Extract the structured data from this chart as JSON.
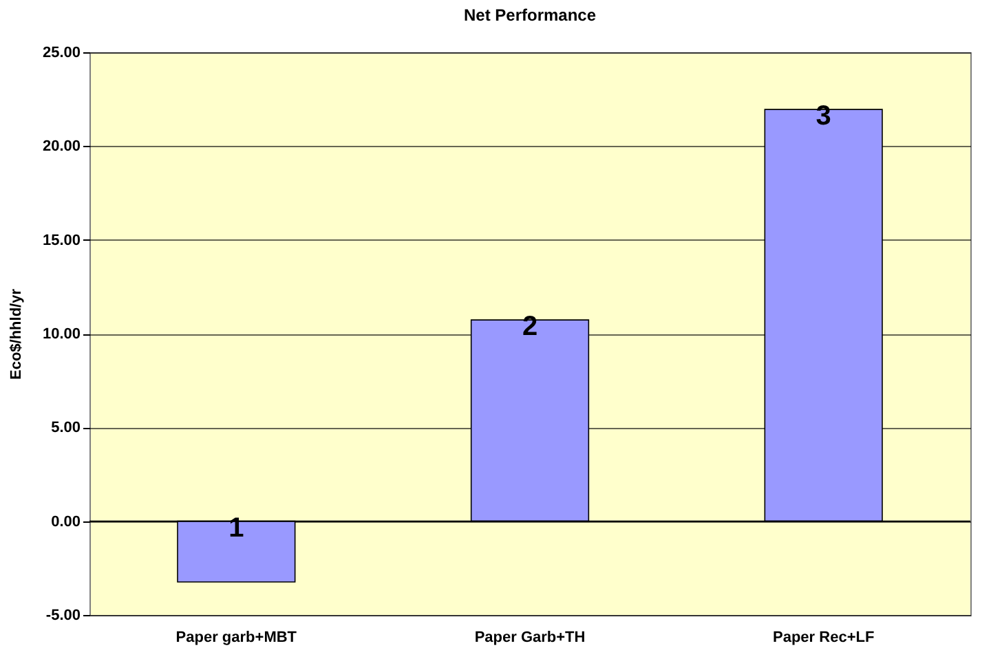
{
  "chart_data": {
    "type": "bar",
    "title": "Net Performance",
    "ylabel": "Eco$/hhld/yr",
    "categories": [
      "Paper garb+MBT",
      "Paper Garb+TH",
      "Paper Rec+LF"
    ],
    "values": [
      -3.24,
      10.73,
      21.95
    ],
    "color": "#9999ff",
    "ylim": [
      -5,
      25
    ],
    "yticks": [
      {
        "value": -5,
        "label": "-5.00"
      },
      {
        "value": 0,
        "label": "0.00"
      },
      {
        "value": 5,
        "label": "5.00"
      },
      {
        "value": 10,
        "label": "10.00"
      },
      {
        "value": 15,
        "label": "15.00"
      },
      {
        "value": 20,
        "label": "20.00"
      },
      {
        "value": 25,
        "label": "25.00"
      }
    ],
    "grid": "y",
    "annotations": [
      {
        "text": "1",
        "x": "Paper garb+MBT",
        "y": 0
      },
      {
        "text": "2",
        "x": "Paper Garb+TH",
        "y": 10.73
      },
      {
        "text": "3",
        "x": "Paper Rec+LF",
        "y": 21.95
      }
    ]
  }
}
